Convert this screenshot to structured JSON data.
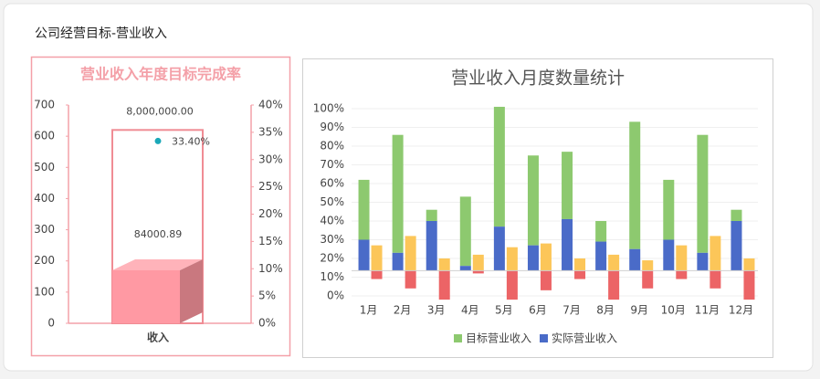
{
  "page_title": "公司经营目标-营业收入",
  "chart_data": [
    {
      "type": "bar",
      "title": "营业收入年度目标完成率",
      "categories": [
        "收入"
      ],
      "series": [
        {
          "values": [
            620
          ],
          "color": "#f08c94",
          "style": "outline"
        },
        {
          "values": [
            170
          ],
          "color": "#ff99a3",
          "style": "3d"
        },
        {
          "type": "point",
          "axis": "y2",
          "values": [
            33.4
          ],
          "value_labels": [
            "33.40%"
          ],
          "color": "#1aa8b8"
        }
      ],
      "annotations": [
        "8,000,000.00",
        "84000.89"
      ],
      "ylim": [
        0,
        700
      ],
      "yticks": [
        0,
        100,
        200,
        300,
        400,
        500,
        600,
        700
      ],
      "y2lim": [
        0,
        40
      ],
      "y2ticks": [
        {
          "value": 0,
          "label": "0%"
        },
        {
          "value": 5,
          "label": "5%"
        },
        {
          "value": 10,
          "label": "10%"
        },
        {
          "value": 15,
          "label": "15%"
        },
        {
          "value": 20,
          "label": "20%"
        },
        {
          "value": 25,
          "label": "25%"
        },
        {
          "value": 30,
          "label": "30%"
        },
        {
          "value": 35,
          "label": "35%"
        },
        {
          "value": 40,
          "label": "40%"
        }
      ]
    },
    {
      "type": "bar",
      "title": "营业收入月度数量统计",
      "categories": [
        "1月",
        "2月",
        "3月",
        "4月",
        "5月",
        "6月",
        "7月",
        "8月",
        "9月",
        "10月",
        "11月",
        "12月"
      ],
      "baseline": 13.5,
      "series": [
        {
          "name": "目标营业收入",
          "color": "#8dc96f",
          "stacked_on": 1,
          "values": [
            32,
            63,
            6,
            37,
            64,
            48,
            36,
            11,
            68,
            32,
            63,
            6
          ]
        },
        {
          "name": "实际营业收入",
          "color": "#4a6bc8",
          "values": [
            30,
            23,
            40,
            16,
            37,
            27,
            41,
            29,
            25,
            30,
            23,
            40
          ]
        },
        {
          "color": "#fcc659",
          "column": 2,
          "values": [
            27,
            32,
            20,
            22,
            26,
            28,
            20,
            22,
            19,
            27,
            32,
            20
          ]
        },
        {
          "color": "#ec6466",
          "column": 2,
          "values": [
            9,
            4,
            -2,
            12,
            -2,
            3,
            9,
            -2,
            4,
            9,
            4,
            -2
          ]
        }
      ],
      "ylim": [
        0,
        100
      ],
      "yticks": [
        {
          "value": 0,
          "label": "0%"
        },
        {
          "value": 10,
          "label": "10%"
        },
        {
          "value": 20,
          "label": "20%"
        },
        {
          "value": 30,
          "label": "30%"
        },
        {
          "value": 40,
          "label": "40%"
        },
        {
          "value": 50,
          "label": "50%"
        },
        {
          "value": 60,
          "label": "60%"
        },
        {
          "value": 70,
          "label": "70%"
        },
        {
          "value": 80,
          "label": "80%"
        },
        {
          "value": 90,
          "label": "90%"
        },
        {
          "value": 100,
          "label": "100%"
        }
      ],
      "grid": true,
      "legend": "bottom"
    }
  ]
}
